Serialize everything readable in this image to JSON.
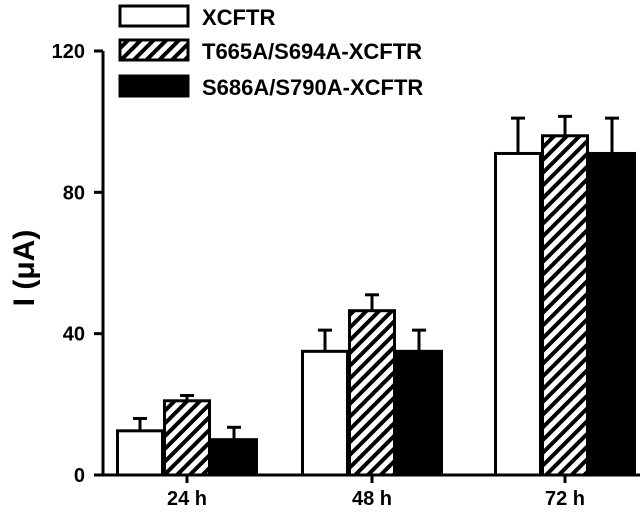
{
  "chart_data": {
    "type": "bar",
    "categories": [
      "24 h",
      "48 h",
      "72 h"
    ],
    "series": [
      {
        "name": "XCFTR",
        "values": [
          12.5,
          35,
          91
        ],
        "errors": [
          3.5,
          6,
          10
        ],
        "fill": "open",
        "color": "#ffffff"
      },
      {
        "name": "T665A/S694A-XCFTR",
        "values": [
          21,
          46.5,
          96
        ],
        "errors": [
          1.5,
          4.5,
          5.5
        ],
        "fill": "hatched",
        "color": "#000000"
      },
      {
        "name": "S686A/S790A-XCFTR",
        "values": [
          10,
          35,
          91
        ],
        "errors": [
          3.5,
          6,
          10
        ],
        "fill": "solid",
        "color": "#000000"
      }
    ],
    "xlabel": "",
    "ylabel": "I (μA)",
    "ylim": [
      0,
      120
    ],
    "yticks": [
      0,
      40,
      80,
      120
    ],
    "legend_position": "top"
  }
}
